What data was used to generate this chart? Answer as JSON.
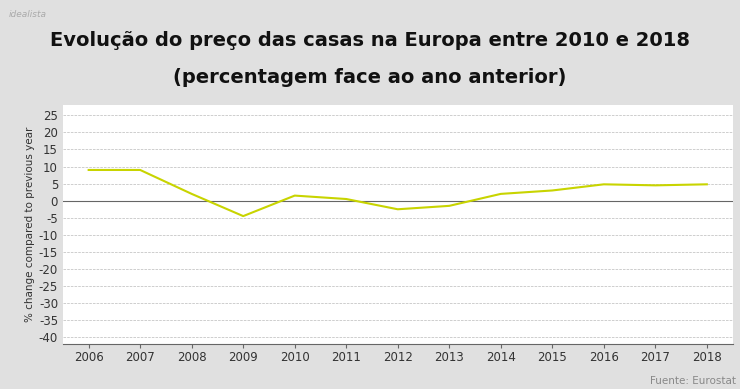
{
  "title_line1": "Evolução do preço das casas na Europa entre 2010 e 2018",
  "title_line2": "(percentagem face ao ano anterior)",
  "ylabel": "% change compared to previous year",
  "source": "Fuente: Eurostat",
  "watermark": "idealista",
  "years": [
    2006,
    2007,
    2008,
    2009,
    2010,
    2011,
    2012,
    2013,
    2014,
    2015,
    2016,
    2017,
    2018
  ],
  "values": [
    9.0,
    9.0,
    2.0,
    -4.5,
    1.5,
    0.5,
    -2.5,
    -1.5,
    2.0,
    3.0,
    4.8,
    4.5,
    4.8
  ],
  "line_color": "#c8d400",
  "background_title": "#e0e0e0",
  "background_plot": "#ffffff",
  "grid_color": "#bbbbbb",
  "yticks": [
    25,
    20,
    15,
    10,
    5,
    0,
    -5,
    -10,
    -15,
    -20,
    -25,
    -30,
    -35,
    -40
  ],
  "ylim": [
    -42,
    28
  ],
  "xlim": [
    2005.5,
    2018.5
  ],
  "title_fontsize": 14,
  "ylabel_fontsize": 7.5,
  "tick_fontsize": 8.5,
  "source_fontsize": 7.5
}
